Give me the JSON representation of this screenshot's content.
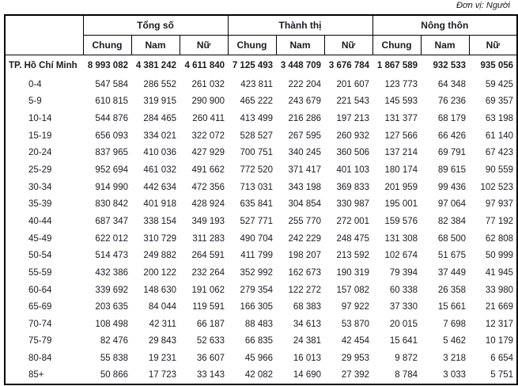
{
  "unit_label": "Đơn vị: Người",
  "colors": {
    "background": "#ffffff",
    "text": "#1b1b22",
    "border": "#000000"
  },
  "table": {
    "corner_label": "",
    "groups": [
      {
        "label": "Tổng số"
      },
      {
        "label": "Thành thị"
      },
      {
        "label": "Nông thôn"
      }
    ],
    "subheaders": [
      "Chung",
      "Nam",
      "Nữ"
    ],
    "total_row": {
      "label": "TP. Hồ Chí Minh",
      "values": [
        "8 993 082",
        "4 381 242",
        "4 611 840",
        "7 125 493",
        "3 448 709",
        "3 676 784",
        "1 867 589",
        "932 533",
        "935 056"
      ]
    },
    "rows": [
      {
        "label": "0-4",
        "values": [
          "547 584",
          "286 552",
          "261 032",
          "423 811",
          "222 204",
          "201 607",
          "123 773",
          "64 348",
          "59 425"
        ]
      },
      {
        "label": "5-9",
        "values": [
          "610 815",
          "319 915",
          "290 900",
          "465 222",
          "243 679",
          "221 543",
          "145 593",
          "76 236",
          "69 357"
        ]
      },
      {
        "label": "10-14",
        "values": [
          "544 876",
          "284 465",
          "260 411",
          "413 499",
          "216 286",
          "197 213",
          "131 377",
          "68 179",
          "63 198"
        ]
      },
      {
        "label": "15-19",
        "values": [
          "656 093",
          "334 021",
          "322 072",
          "528 527",
          "267 595",
          "260 932",
          "127 566",
          "66 426",
          "61 140"
        ]
      },
      {
        "label": "20-24",
        "values": [
          "837 965",
          "410 036",
          "427 929",
          "700 751",
          "340 245",
          "360 506",
          "137 214",
          "69 791",
          "67 423"
        ]
      },
      {
        "label": "25-29",
        "values": [
          "952 694",
          "461 032",
          "491 662",
          "772 520",
          "371 417",
          "401 103",
          "180 174",
          "89 615",
          "90 559"
        ]
      },
      {
        "label": "30-34",
        "values": [
          "914 990",
          "442 634",
          "472 356",
          "713 031",
          "343 198",
          "369 833",
          "201 959",
          "99 436",
          "102 523"
        ]
      },
      {
        "label": "35-39",
        "values": [
          "830 842",
          "401 918",
          "428 924",
          "635 841",
          "304 854",
          "330 987",
          "195 001",
          "97 064",
          "97 937"
        ]
      },
      {
        "label": "40-44",
        "values": [
          "687 347",
          "338 154",
          "349 193",
          "527 771",
          "255 770",
          "272 001",
          "159 576",
          "82 384",
          "77 192"
        ]
      },
      {
        "label": "45-49",
        "values": [
          "622 012",
          "310 729",
          "311 283",
          "490 704",
          "242 229",
          "248 475",
          "131 308",
          "68 500",
          "62 808"
        ]
      },
      {
        "label": "50-54",
        "values": [
          "514 473",
          "249 882",
          "264 591",
          "411 799",
          "198 207",
          "213 592",
          "102 674",
          "51 675",
          "50 999"
        ]
      },
      {
        "label": "55-59",
        "values": [
          "432 386",
          "200 122",
          "232 264",
          "352 992",
          "162 673",
          "190 319",
          "79 394",
          "37 449",
          "41 945"
        ]
      },
      {
        "label": "60-64",
        "values": [
          "339 692",
          "148 630",
          "191 062",
          "279 354",
          "122 272",
          "157 082",
          "60 338",
          "26 358",
          "33 980"
        ]
      },
      {
        "label": "65-69",
        "values": [
          "203 635",
          "84 044",
          "119 591",
          "166 305",
          "68 383",
          "97 922",
          "37 330",
          "15 661",
          "21 669"
        ]
      },
      {
        "label": "70-74",
        "values": [
          "108 498",
          "42 311",
          "66 187",
          "88 483",
          "34 613",
          "53 870",
          "20 015",
          "7 698",
          "12 317"
        ]
      },
      {
        "label": "75-79",
        "values": [
          "82 476",
          "29 843",
          "52 633",
          "66 835",
          "24 381",
          "42 454",
          "15 641",
          "5 462",
          "10 179"
        ]
      },
      {
        "label": "80-84",
        "values": [
          "55 838",
          "19 231",
          "36 607",
          "45 966",
          "16 013",
          "29 953",
          "9 872",
          "3 218",
          "6 654"
        ]
      },
      {
        "label": "85+",
        "values": [
          "50 866",
          "17 723",
          "33 143",
          "42 082",
          "14 690",
          "27 392",
          "8 784",
          "3 033",
          "5 751"
        ]
      }
    ]
  }
}
